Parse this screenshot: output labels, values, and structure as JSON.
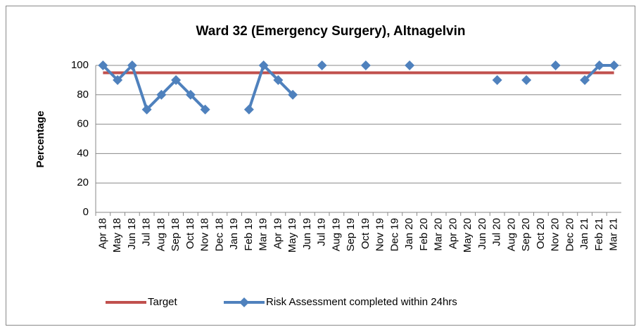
{
  "chart_data": {
    "type": "line",
    "title": "Ward 32 (Emergency Surgery), Altnagelvin",
    "y_label": "Percentage",
    "categories": [
      "Apr 18",
      "May 18",
      "Jun 18",
      "Jul 18",
      "Aug 18",
      "Sep 18",
      "Oct 18",
      "Nov 18",
      "Dec 18",
      "Jan 19",
      "Feb 19",
      "Mar 19",
      "Apr 19",
      "May 19",
      "Jun 19",
      "Jul 19",
      "Aug 19",
      "Sep 19",
      "Oct 19",
      "Nov 19",
      "Dec 19",
      "Jan 20",
      "Feb 20",
      "Mar 20",
      "Apr 20",
      "May 20",
      "Jun 20",
      "Jul 20",
      "Aug 20",
      "Sep 20",
      "Oct 20",
      "Nov 20",
      "Dec 20",
      "Jan 21",
      "Feb 21",
      "Mar 21"
    ],
    "series": [
      {
        "name": "Target",
        "color": "#c0504d",
        "marker": false,
        "values": [
          95,
          95,
          95,
          95,
          95,
          95,
          95,
          95,
          95,
          95,
          95,
          95,
          95,
          95,
          95,
          95,
          95,
          95,
          95,
          95,
          95,
          95,
          95,
          95,
          95,
          95,
          95,
          95,
          95,
          95,
          95,
          95,
          95,
          95,
          95,
          95
        ]
      },
      {
        "name": "Risk Assessment completed within 24hrs",
        "color": "#4f81bd",
        "marker": true,
        "values": [
          100,
          90,
          100,
          70,
          80,
          90,
          80,
          70,
          null,
          null,
          70,
          100,
          90,
          80,
          null,
          100,
          null,
          null,
          100,
          null,
          null,
          100,
          null,
          null,
          null,
          null,
          null,
          90,
          null,
          90,
          null,
          100,
          null,
          90,
          100,
          100
        ]
      }
    ],
    "ylim": [
      0,
      100
    ],
    "yticks": [
      0,
      20,
      40,
      60,
      80,
      100
    ],
    "grid": true,
    "legend": "bottom"
  }
}
